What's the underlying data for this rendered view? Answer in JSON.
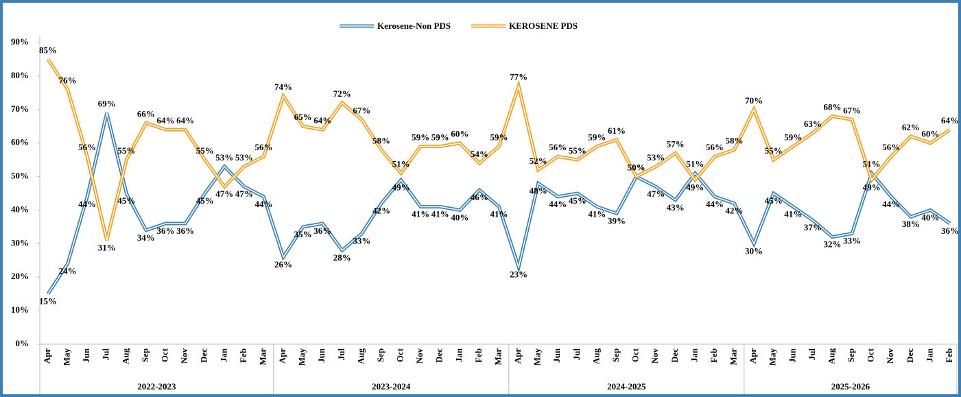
{
  "chart_data": {
    "type": "line",
    "groups": [
      {
        "label": "2022-2023",
        "categories": [
          "Apr",
          "May",
          "Jun",
          "Jul",
          "Aug",
          "Sep",
          "Oct",
          "Nov",
          "Dec",
          "Jan",
          "Feb",
          "Mar"
        ]
      },
      {
        "label": "2023-2024",
        "categories": [
          "Apr",
          "May",
          "Jun",
          "Jul",
          "Aug",
          "Sep",
          "Oct",
          "Nov",
          "Dec",
          "Jan",
          "Feb",
          "Mar"
        ]
      },
      {
        "label": "2024-2025",
        "categories": [
          "Apr",
          "May",
          "Jun",
          "Jul",
          "Aug",
          "Sep",
          "Oct",
          "Nov",
          "Dec",
          "Jan",
          "Feb",
          "Mar"
        ]
      },
      {
        "label": "2025-2026",
        "categories": [
          "Apr",
          "May",
          "Jun",
          "Jul",
          "Aug",
          "Sep",
          "Oct",
          "Nov",
          "Dec",
          "Jan",
          "Feb"
        ]
      }
    ],
    "series": [
      {
        "name": "Kerosene-Non PDS",
        "color": "#3f83b3",
        "values": [
          15,
          24,
          44,
          69,
          45,
          34,
          36,
          36,
          45,
          53,
          47,
          44,
          26,
          35,
          36,
          28,
          33,
          42,
          49,
          41,
          41,
          40,
          46,
          41,
          23,
          48,
          44,
          45,
          41,
          39,
          50,
          47,
          43,
          51,
          44,
          42,
          30,
          45,
          41,
          37,
          32,
          33,
          51,
          44,
          38,
          40,
          36
        ],
        "value_labels": [
          "15%",
          "24%",
          "44%",
          "69%",
          "45%",
          "34%",
          "36%",
          "36%",
          "45%",
          "53%",
          "47%",
          "44%",
          "26%",
          "35%",
          "36%",
          "28%",
          "33%",
          "42%",
          "49%",
          "41%",
          "41%",
          "40%",
          "46%",
          "41%",
          "23%",
          "48%",
          "44%",
          "45%",
          "41%",
          "39%",
          "50%",
          "47%",
          "43%",
          "51%",
          "44%",
          "42%",
          "30%",
          "45%",
          "41%",
          "37%",
          "32%",
          "33%",
          "51%",
          "44%",
          "38%",
          "40%",
          "36%"
        ]
      },
      {
        "name": "KEROSENE PDS",
        "color": "#f0a020",
        "values": [
          85,
          76,
          56,
          31,
          55,
          66,
          64,
          64,
          55,
          47,
          53,
          56,
          74,
          65,
          64,
          72,
          67,
          58,
          51,
          59,
          59,
          60,
          54,
          59,
          77,
          52,
          56,
          55,
          59,
          61,
          50,
          53,
          57,
          49,
          56,
          58,
          70,
          55,
          59,
          63,
          68,
          67,
          49,
          56,
          62,
          60,
          64
        ],
        "value_labels": [
          "85%",
          "76%",
          "56%",
          "31%",
          "55%",
          "66%",
          "64%",
          "64%",
          "55%",
          "47%",
          "53%",
          "56%",
          "74%",
          "65%",
          "64%",
          "72%",
          "67%",
          "58%",
          "51%",
          "59%",
          "59%",
          "60%",
          "54%",
          "59%",
          "77%",
          "52%",
          "56%",
          "55%",
          "59%",
          "61%",
          "50%",
          "53%",
          "57%",
          "49%",
          "56%",
          "58%",
          "70%",
          "55%",
          "59%",
          "63%",
          "68%",
          "67%",
          "49%",
          "56%",
          "62%",
          "60%",
          "64%"
        ]
      }
    ],
    "ylim": [
      0,
      90
    ],
    "yticks": [
      {
        "value": 0,
        "label": "0%"
      },
      {
        "value": 10,
        "label": "10%"
      },
      {
        "value": 20,
        "label": "20%"
      },
      {
        "value": 30,
        "label": "30%"
      },
      {
        "value": 40,
        "label": "40%"
      },
      {
        "value": 50,
        "label": "50%"
      },
      {
        "value": 60,
        "label": "60%"
      },
      {
        "value": 70,
        "label": "70%"
      },
      {
        "value": 80,
        "label": "80%"
      },
      {
        "value": 90,
        "label": "90%"
      }
    ],
    "legend": "top"
  }
}
